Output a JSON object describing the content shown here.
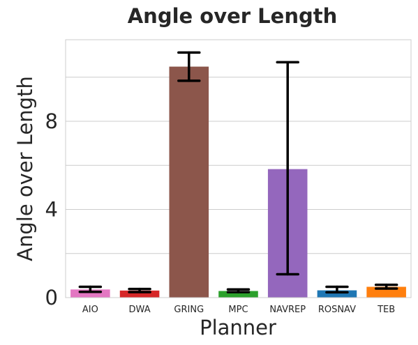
{
  "chart_data": {
    "type": "bar",
    "title": "Angle over Length",
    "xlabel": "Planner",
    "ylabel": "Angle over Length",
    "categories": [
      "AIO",
      "DWA",
      "GRING",
      "MPC",
      "NAVREP",
      "ROSNAV",
      "TEB"
    ],
    "values": [
      0.37,
      0.32,
      10.48,
      0.3,
      5.83,
      0.33,
      0.49
    ],
    "error_low": [
      0.26,
      0.25,
      9.84,
      0.25,
      1.06,
      0.24,
      0.41
    ],
    "error_high": [
      0.49,
      0.39,
      11.12,
      0.37,
      10.68,
      0.49,
      0.58
    ],
    "colors": [
      "#e377c2",
      "#d62728",
      "#8c564b",
      "#2ca02c",
      "#9467bd",
      "#1f77b4",
      "#ff7f0e"
    ],
    "yticks": [
      0,
      4,
      8
    ],
    "ytick_labels": [
      "0",
      "4",
      "8"
    ],
    "ylim": [
      0,
      11.7
    ],
    "grid": true
  }
}
